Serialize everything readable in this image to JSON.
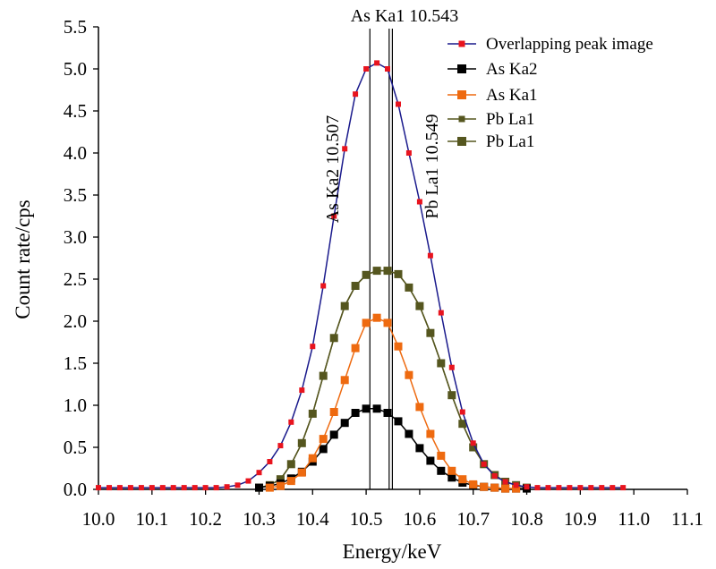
{
  "chart_data": {
    "type": "line",
    "xlabel": "Energy/keV",
    "ylabel": "Count rate/cps",
    "xlim": [
      10.0,
      11.1
    ],
    "ylim": [
      0.0,
      5.5
    ],
    "xticks": [
      "10.0",
      "10.1",
      "10.2",
      "10.3",
      "10.4",
      "10.5",
      "10.6",
      "10.7",
      "10.8",
      "10.9",
      "11.0",
      "11.1"
    ],
    "yticks": [
      "0.0",
      "0.5",
      "1.0",
      "1.5",
      "2.0",
      "2.5",
      "3.0",
      "3.5",
      "4.0",
      "4.5",
      "5.0",
      "5.5"
    ],
    "grid": false,
    "legend_position": "top-right",
    "colors": {
      "overlap_line": "#1a1a8c",
      "overlap_marker": "#e8141e",
      "as_ka2": "#000000",
      "as_ka1": "#ee6a10",
      "pb_la1": "#55561f"
    },
    "annotations": [
      {
        "label": "As Ka1  10.543",
        "x": 10.543
      },
      {
        "label": "As Ka2  10.507",
        "x": 10.507
      },
      {
        "label": "Pb La1  10.549",
        "x": 10.549
      }
    ],
    "series": [
      {
        "name": "Overlapping peak image",
        "key": "overlap_line",
        "marker": "small-square",
        "x": [
          10.0,
          10.02,
          10.04,
          10.06,
          10.08,
          10.1,
          10.12,
          10.14,
          10.16,
          10.18,
          10.2,
          10.22,
          10.24,
          10.26,
          10.28,
          10.3,
          10.32,
          10.34,
          10.36,
          10.38,
          10.4,
          10.42,
          10.44,
          10.46,
          10.48,
          10.5,
          10.52,
          10.54,
          10.56,
          10.58,
          10.6,
          10.62,
          10.64,
          10.66,
          10.68,
          10.7,
          10.72,
          10.74,
          10.76,
          10.78,
          10.8,
          10.82,
          10.84,
          10.86,
          10.88,
          10.9,
          10.92,
          10.94,
          10.96,
          10.98
        ],
        "y": [
          0.02,
          0.02,
          0.02,
          0.02,
          0.02,
          0.02,
          0.02,
          0.02,
          0.02,
          0.02,
          0.02,
          0.02,
          0.03,
          0.05,
          0.1,
          0.2,
          0.33,
          0.52,
          0.8,
          1.18,
          1.7,
          2.42,
          3.25,
          4.05,
          4.7,
          5.0,
          5.07,
          5.0,
          4.58,
          4.0,
          3.42,
          2.78,
          2.1,
          1.45,
          0.92,
          0.55,
          0.3,
          0.16,
          0.09,
          0.05,
          0.03,
          0.02,
          0.02,
          0.02,
          0.02,
          0.02,
          0.02,
          0.02,
          0.02,
          0.02
        ]
      },
      {
        "name": "As Ka2",
        "key": "as_ka2",
        "marker": "square",
        "x": [
          10.3,
          10.32,
          10.34,
          10.36,
          10.38,
          10.4,
          10.42,
          10.44,
          10.46,
          10.48,
          10.5,
          10.52,
          10.54,
          10.56,
          10.58,
          10.6,
          10.62,
          10.64,
          10.66,
          10.68,
          10.7,
          10.72,
          10.74,
          10.76,
          10.78,
          10.8
        ],
        "y": [
          0.02,
          0.04,
          0.07,
          0.13,
          0.21,
          0.33,
          0.48,
          0.65,
          0.79,
          0.91,
          0.96,
          0.96,
          0.91,
          0.81,
          0.66,
          0.49,
          0.34,
          0.22,
          0.14,
          0.08,
          0.05,
          0.03,
          0.02,
          0.01,
          0.01,
          0.01
        ]
      },
      {
        "name": "As Ka1",
        "key": "as_ka1",
        "marker": "square",
        "x": [
          10.32,
          10.34,
          10.36,
          10.38,
          10.4,
          10.42,
          10.44,
          10.46,
          10.48,
          10.5,
          10.52,
          10.54,
          10.56,
          10.58,
          10.6,
          10.62,
          10.64,
          10.66,
          10.68,
          10.7,
          10.72,
          10.74,
          10.76,
          10.78
        ],
        "y": [
          0.02,
          0.04,
          0.1,
          0.2,
          0.37,
          0.6,
          0.92,
          1.3,
          1.68,
          1.98,
          2.04,
          1.98,
          1.7,
          1.36,
          0.98,
          0.66,
          0.4,
          0.22,
          0.12,
          0.06,
          0.03,
          0.02,
          0.01,
          0.01
        ]
      },
      {
        "name": "Pb La1",
        "key": "pb_la1",
        "marker": "small-square",
        "x": [
          10.3,
          10.32,
          10.34,
          10.36,
          10.38,
          10.4,
          10.42,
          10.44,
          10.46,
          10.48,
          10.5,
          10.52,
          10.54,
          10.56,
          10.58,
          10.6,
          10.62,
          10.64,
          10.66,
          10.68,
          10.7,
          10.72,
          10.74,
          10.76,
          10.78,
          10.8
        ],
        "y": [
          0.02,
          0.05,
          0.12,
          0.3,
          0.55,
          0.9,
          1.35,
          1.8,
          2.18,
          2.42,
          2.55,
          2.6,
          2.6,
          2.56,
          2.4,
          2.18,
          1.86,
          1.5,
          1.12,
          0.78,
          0.5,
          0.3,
          0.17,
          0.09,
          0.05,
          0.02
        ]
      },
      {
        "name": "Pb La1",
        "key": "pb_la1",
        "marker": "square",
        "x": [
          10.3,
          10.32,
          10.34,
          10.36,
          10.38,
          10.4,
          10.42,
          10.44,
          10.46,
          10.48,
          10.5,
          10.52,
          10.54,
          10.56,
          10.58,
          10.6,
          10.62,
          10.64,
          10.66,
          10.68,
          10.7,
          10.72,
          10.74,
          10.76,
          10.78,
          10.8
        ],
        "y": [
          0.02,
          0.05,
          0.12,
          0.3,
          0.55,
          0.9,
          1.35,
          1.8,
          2.18,
          2.42,
          2.55,
          2.6,
          2.6,
          2.56,
          2.4,
          2.18,
          1.86,
          1.5,
          1.12,
          0.78,
          0.5,
          0.3,
          0.17,
          0.09,
          0.05,
          0.02
        ]
      }
    ]
  }
}
